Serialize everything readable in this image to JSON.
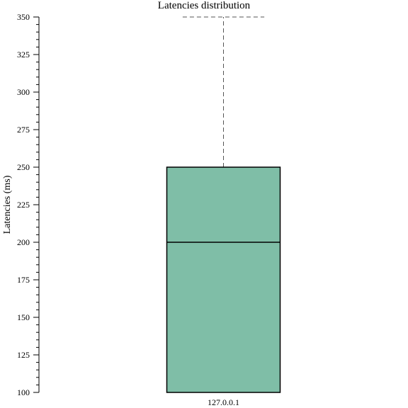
{
  "chart_data": {
    "type": "box",
    "title": "Latencies distribution",
    "xlabel": "",
    "ylabel": "Latencies (ms)",
    "ylim": [
      100,
      350
    ],
    "y_major_ticks": [
      100,
      125,
      150,
      175,
      200,
      225,
      250,
      275,
      300,
      325,
      350
    ],
    "y_tick_labels": [
      "100",
      "125",
      "150",
      "175",
      "200",
      "225",
      "250",
      "275",
      "300",
      "325",
      "350"
    ],
    "y_minor_step": 5,
    "categories": [
      "127.0.0.1"
    ],
    "boxes": [
      {
        "category": "127.0.0.1",
        "whisker_low": 100,
        "q1": 100,
        "median": 200,
        "q3": 250,
        "whisker_high": 350
      }
    ],
    "grid": false,
    "colors": {
      "box_fill": "#7fbea7",
      "box_stroke": "#000000",
      "whisker": "#555555"
    }
  }
}
